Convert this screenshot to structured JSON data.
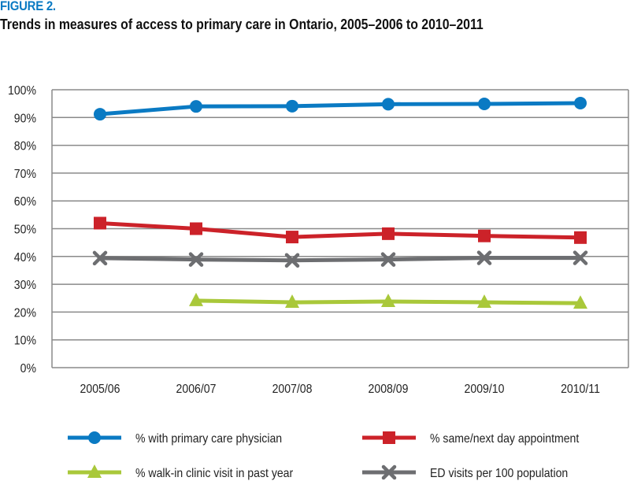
{
  "figure_label": "FIGURE 2.",
  "figure_title": "Trends in measures of access to primary care in Ontario, 2005–2006 to 2010–2011",
  "chart_data": {
    "type": "line",
    "title": "Trends in measures of access to primary care in Ontario, 2005–2006 to 2010–2011",
    "xlabel": "",
    "ylabel": "",
    "categories": [
      "2005/06",
      "2006/07",
      "2007/08",
      "2008/09",
      "2009/10",
      "2010/11"
    ],
    "ylim": [
      0,
      100
    ],
    "yticks": [
      0,
      10,
      20,
      30,
      40,
      50,
      60,
      70,
      80,
      90,
      100
    ],
    "ytick_labels": [
      "0%",
      "10%",
      "20%",
      "30%",
      "40%",
      "50%",
      "60%",
      "70%",
      "80%",
      "90%",
      "100%"
    ],
    "grid": true,
    "legend_position": "bottom",
    "series": [
      {
        "name": "% with primary care physician",
        "color": "#0a7ac3",
        "marker": "circle",
        "values": [
          91.2,
          94.0,
          94.1,
          94.8,
          94.9,
          95.2
        ]
      },
      {
        "name": "% same/next day appointment",
        "color": "#cc2229",
        "marker": "square",
        "values": [
          52.0,
          50.0,
          47.0,
          48.2,
          47.4,
          46.8
        ]
      },
      {
        "name": "% walk-in clinic visit in past year",
        "color": "#a9c83a",
        "marker": "triangle",
        "values": [
          null,
          24.1,
          23.5,
          23.8,
          23.5,
          23.2
        ]
      },
      {
        "name": "ED visits per 100 population",
        "color": "#6d6e71",
        "marker": "x",
        "values": [
          39.4,
          38.9,
          38.6,
          38.9,
          39.5,
          39.5
        ]
      }
    ]
  }
}
